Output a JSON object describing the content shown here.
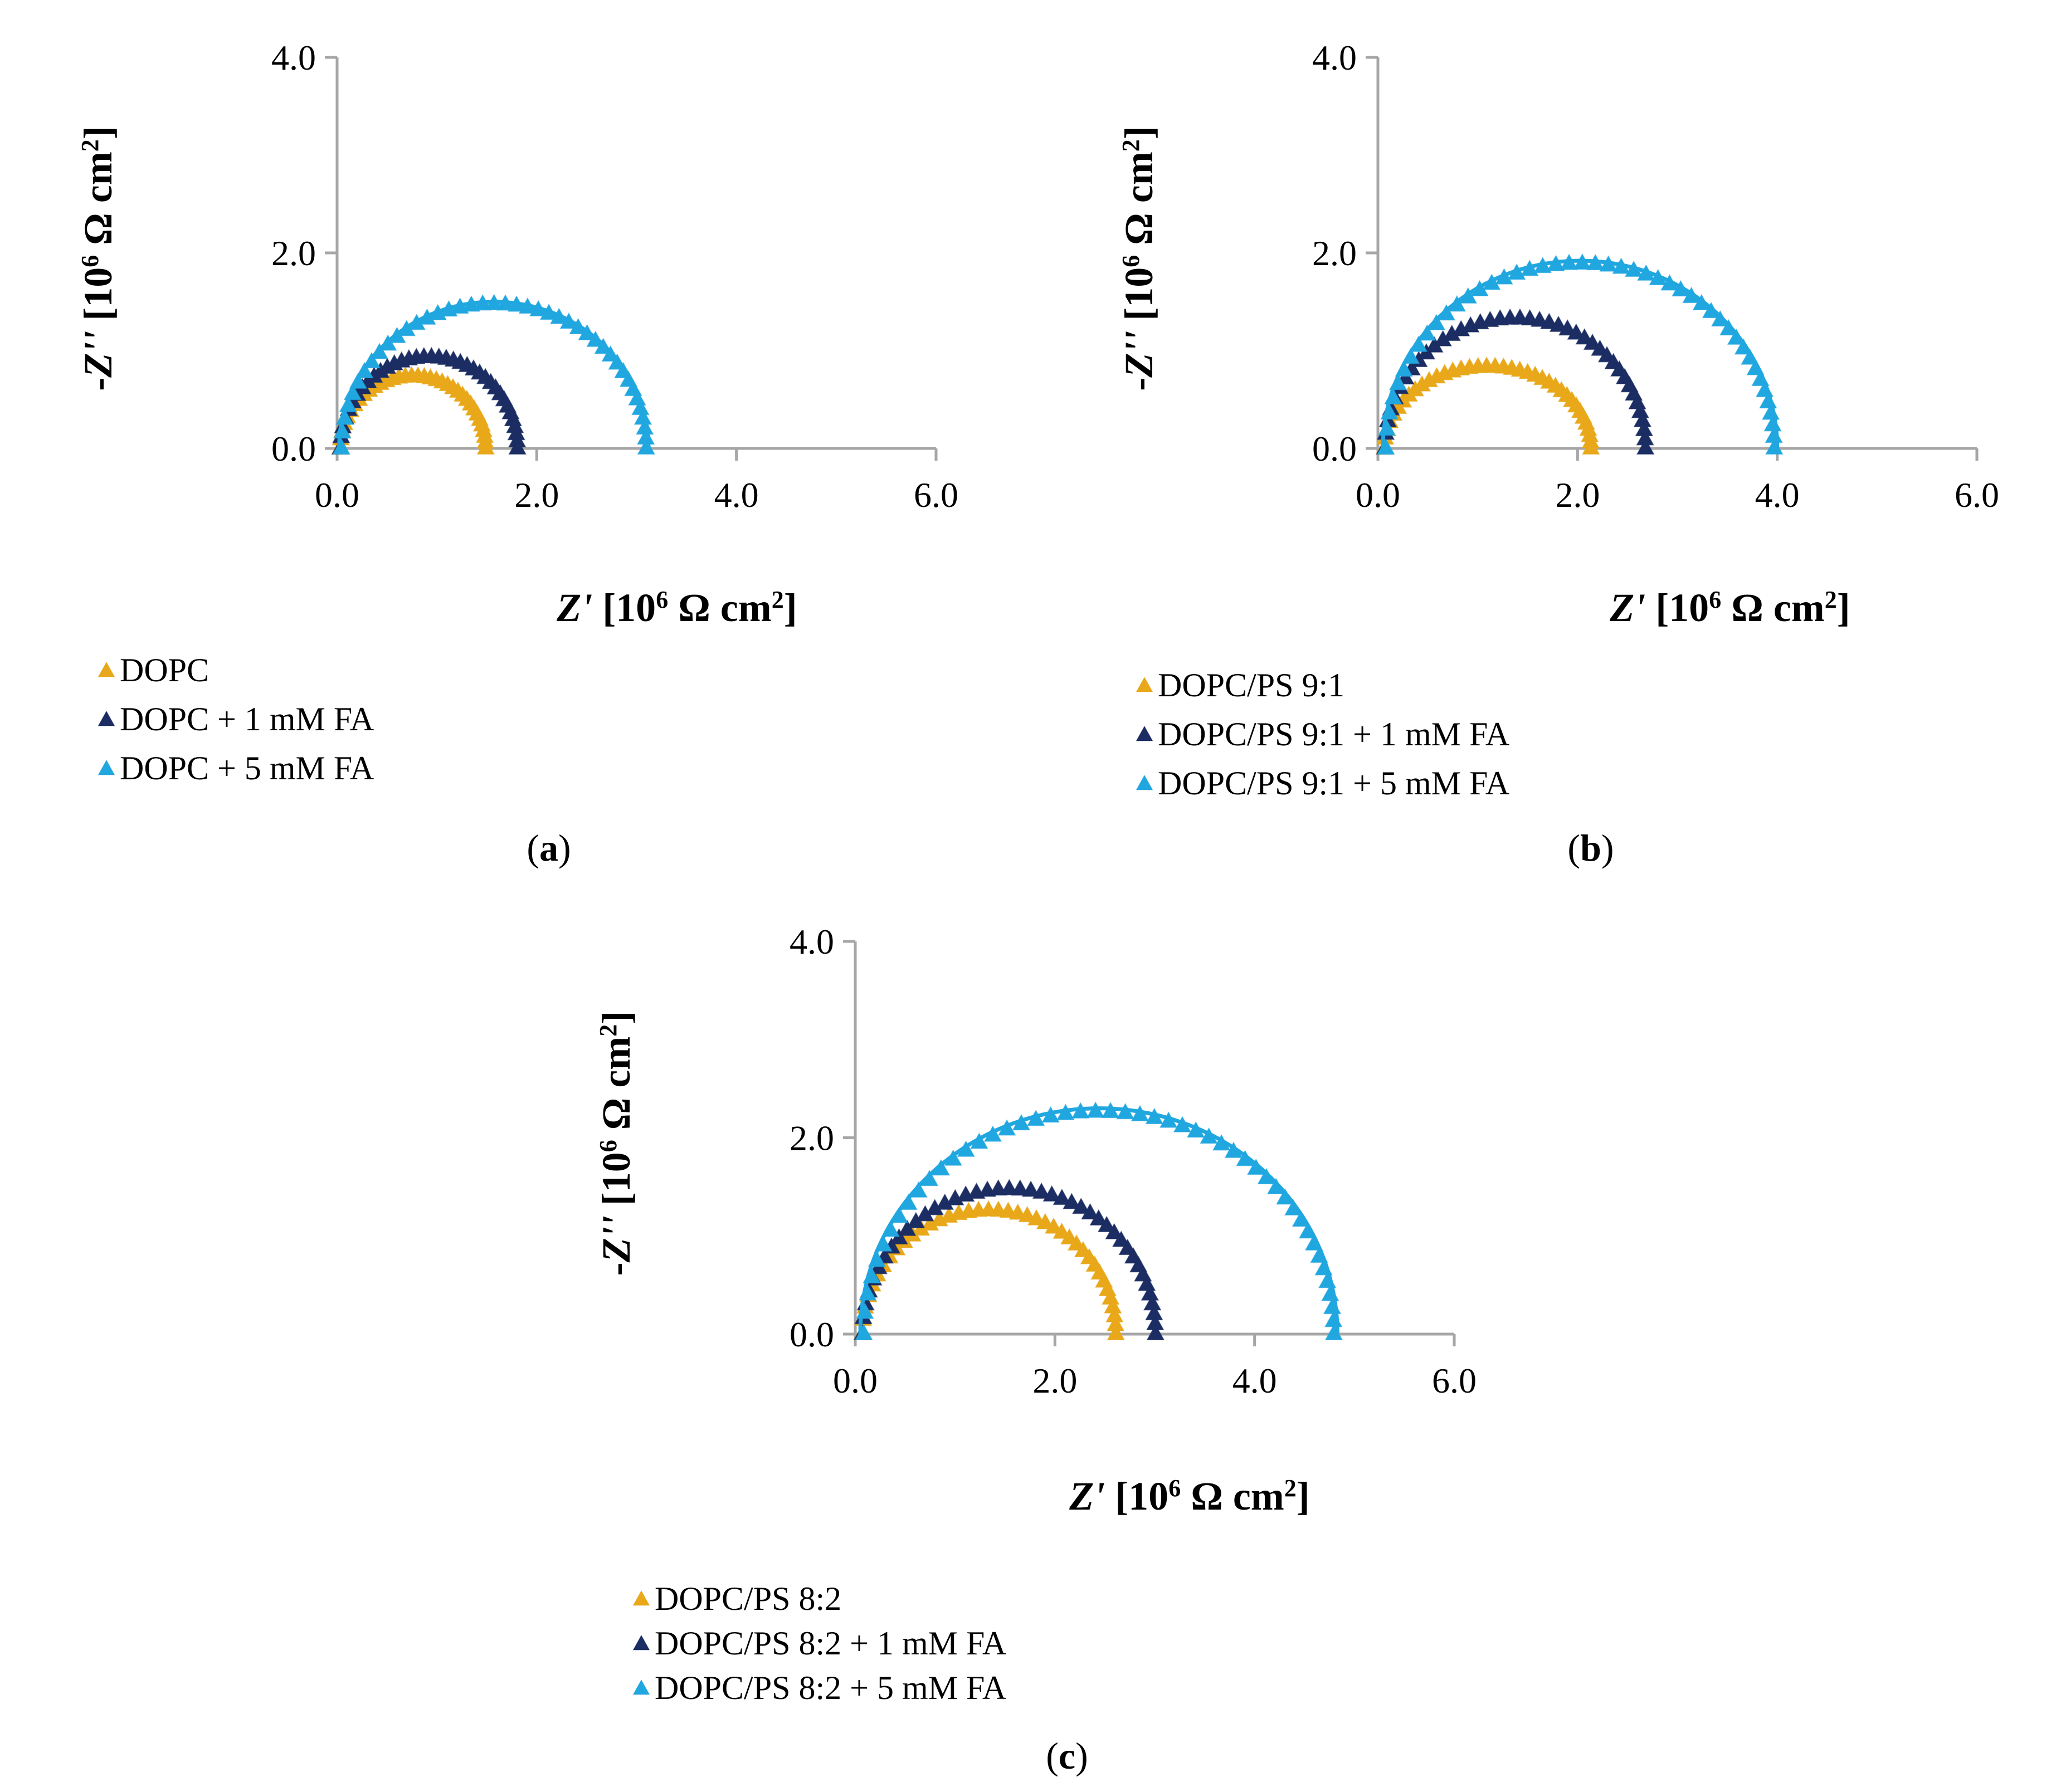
{
  "colors": {
    "gold": "#e8a81a",
    "navy": "#1b2d63",
    "sky": "#21a7e0",
    "axis": "#a6a6a6"
  },
  "axis_text": {
    "x_italic": "Z'",
    "y_prefix": "-",
    "y_italic": "Z''",
    "bracket_open": "[10",
    "exponent": "6",
    "unit": " Ω cm",
    "unit_exp": "2",
    "bracket_close": "]"
  },
  "chart_data": [
    {
      "type": "scatter",
      "panel": "(a)",
      "panel_letter": "a",
      "xlabel": "Z' [10^6 Ω cm^2]",
      "ylabel": "-Z'' [10^6 Ω cm^2]",
      "xlim": [
        0,
        6
      ],
      "ylim": [
        0,
        4
      ],
      "x_ticks": [
        "0.0",
        "2.0",
        "4.0",
        "6.0"
      ],
      "y_ticks": [
        "0.0",
        "2.0",
        "4.0"
      ],
      "grid": false,
      "legend_position": "bottom-left",
      "series": [
        {
          "name": "DOPC",
          "color_key": "gold",
          "rs": 0.02,
          "r": 1.48,
          "h": 0.75,
          "fit": false
        },
        {
          "name": "DOPC + 1 mM FA",
          "color_key": "navy",
          "rs": 0.02,
          "r": 1.8,
          "h": 0.95,
          "fit": false
        },
        {
          "name": "DOPC + 5 mM FA",
          "color_key": "sky",
          "rs": 0.02,
          "r": 3.1,
          "h": 1.5,
          "fit": true
        }
      ]
    },
    {
      "type": "scatter",
      "panel": "(b)",
      "panel_letter": "b",
      "xlabel": "Z' [10^6 Ω cm^2]",
      "ylabel": "-Z'' [10^6 Ω cm^2]",
      "xlim": [
        0,
        6
      ],
      "ylim": [
        0,
        4
      ],
      "x_ticks": [
        "0.0",
        "2.0",
        "4.0",
        "6.0"
      ],
      "y_ticks": [
        "0.0",
        "2.0",
        "4.0"
      ],
      "grid": false,
      "legend_position": "bottom-left",
      "series": [
        {
          "name": "DOPC/PS 9:1",
          "color_key": "gold",
          "rs": 0.05,
          "r": 2.1,
          "h": 0.85,
          "fit": false
        },
        {
          "name": "DOPC/PS 9:1 + 1 mM FA",
          "color_key": "navy",
          "rs": 0.05,
          "r": 2.65,
          "h": 1.35,
          "fit": false
        },
        {
          "name": "DOPC/PS 9:1 + 5 mM FA",
          "color_key": "sky",
          "rs": 0.05,
          "r": 3.95,
          "h": 1.92,
          "fit": true
        }
      ]
    },
    {
      "type": "scatter",
      "panel": "(c)",
      "panel_letter": "c",
      "xlabel": "Z' [10^6 Ω cm^2]",
      "ylabel": "-Z'' [10^6 Ω cm^2]",
      "xlim": [
        0,
        6
      ],
      "ylim": [
        0,
        4
      ],
      "x_ticks": [
        "0.0",
        "2.0",
        "4.0",
        "6.0"
      ],
      "y_ticks": [
        "0.0",
        "2.0",
        "4.0"
      ],
      "grid": false,
      "legend_position": "bottom-left",
      "series": [
        {
          "name": "DOPC/PS 8:2",
          "color_key": "gold",
          "rs": 0.05,
          "r": 2.58,
          "h": 1.28,
          "fit": false
        },
        {
          "name": "DOPC/PS 8:2 + 1 mM FA",
          "color_key": "navy",
          "rs": 0.05,
          "r": 2.98,
          "h": 1.5,
          "fit": false
        },
        {
          "name": "DOPC/PS 8:2 + 5 mM FA",
          "color_key": "sky",
          "rs": 0.05,
          "r": 4.78,
          "h": 2.3,
          "fit": true
        }
      ]
    }
  ]
}
